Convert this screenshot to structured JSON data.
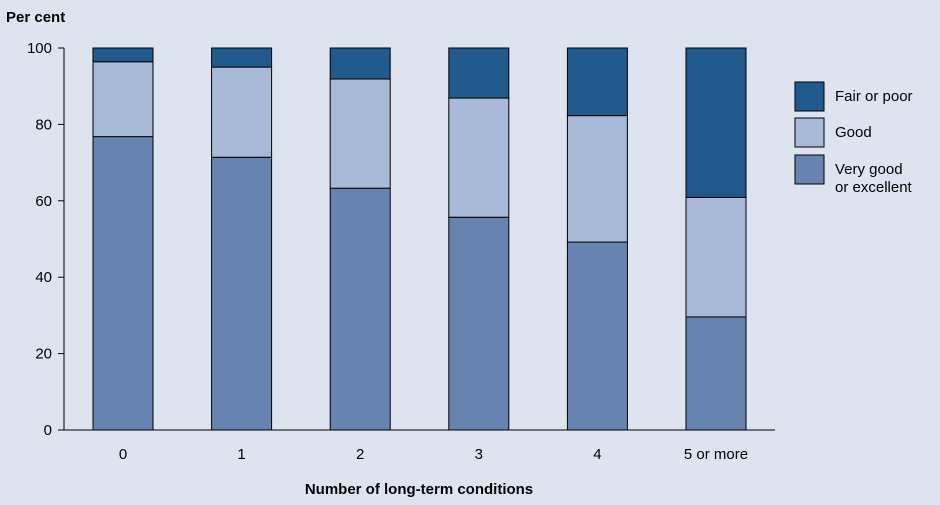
{
  "chart_data": {
    "type": "bar",
    "stacked": true,
    "ylabel": "Per cent",
    "xlabel": "Number of long-term conditions",
    "ylim": [
      0,
      100
    ],
    "yticks": [
      0,
      20,
      40,
      60,
      80,
      100
    ],
    "categories": [
      "0",
      "1",
      "2",
      "3",
      "4",
      "5 or more"
    ],
    "grid": false,
    "legend_position": "right",
    "series": [
      {
        "name": "Very good or excellent",
        "legend_lines": [
          "Very good",
          "or excellent"
        ],
        "color": "#6783b0",
        "values": [
          76.8,
          71.4,
          63.3,
          55.7,
          49.2,
          29.6
        ]
      },
      {
        "name": "Good",
        "legend_lines": [
          "Good"
        ],
        "color": "#a9b9d8",
        "values": [
          19.6,
          23.6,
          28.6,
          31.2,
          33.1,
          31.3
        ]
      },
      {
        "name": "Fair or poor",
        "legend_lines": [
          "Fair or poor"
        ],
        "color": "#235a8e",
        "values": [
          3.6,
          5.0,
          8.1,
          13.1,
          17.7,
          39.1
        ]
      }
    ]
  }
}
